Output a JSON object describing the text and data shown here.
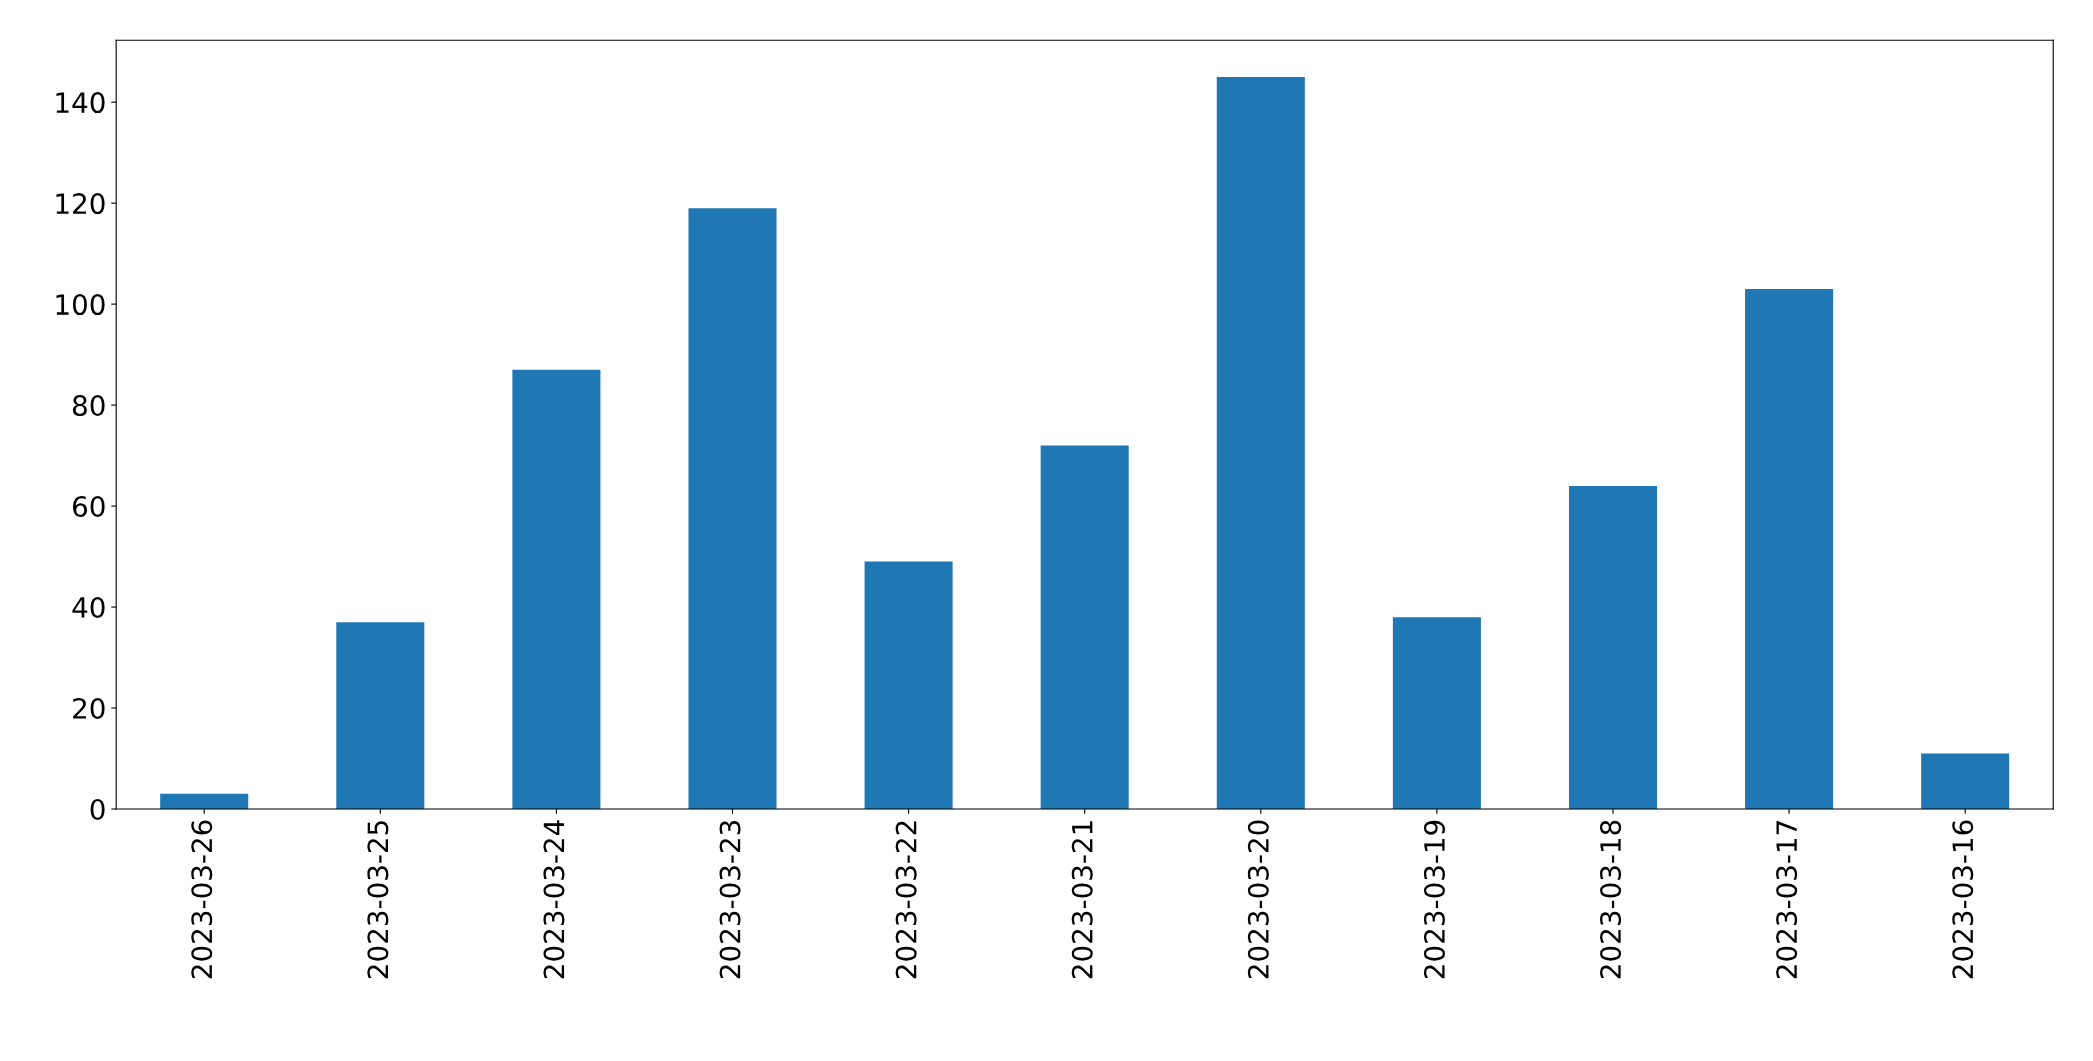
{
  "chart_data": {
    "type": "bar",
    "categories": [
      "2023-03-26",
      "2023-03-25",
      "2023-03-24",
      "2023-03-23",
      "2023-03-22",
      "2023-03-21",
      "2023-03-20",
      "2023-03-19",
      "2023-03-18",
      "2023-03-17",
      "2023-03-16"
    ],
    "values": [
      3,
      37,
      87,
      119,
      49,
      72,
      145,
      38,
      64,
      103,
      11
    ],
    "color": "#1f77b4",
    "ylim": [
      0,
      152.25
    ],
    "yticks": [
      0,
      20,
      40,
      60,
      80,
      100,
      120,
      140
    ],
    "grid": false,
    "legend": false
  }
}
